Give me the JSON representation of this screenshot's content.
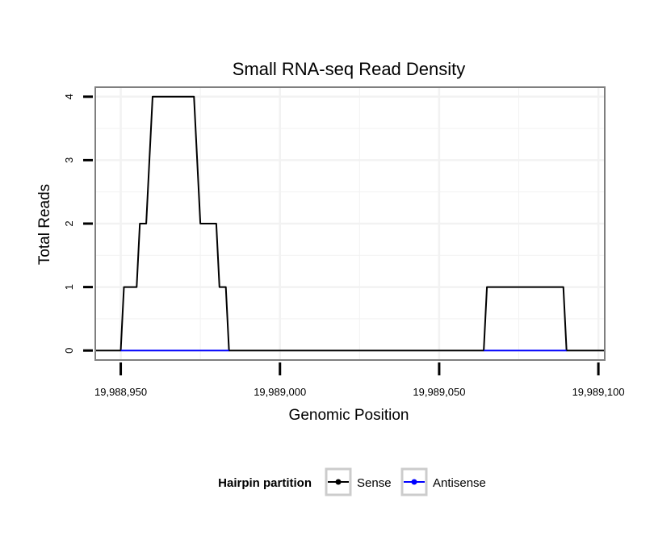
{
  "chart_data": {
    "type": "line",
    "title": "Small RNA-seq Read Density",
    "xlabel": "Genomic Position",
    "ylabel": "Total Reads",
    "xlim": [
      19988942,
      19989102
    ],
    "ylim": [
      -0.15,
      4.15
    ],
    "x_ticks": [
      19988950,
      19989000,
      19989050,
      19989100
    ],
    "x_tick_labels": [
      "19,988,950",
      "19,989,000",
      "19,989,050",
      "19,989,100"
    ],
    "y_ticks": [
      0,
      1,
      2,
      3,
      4
    ],
    "y_tick_labels": [
      "0",
      "1",
      "2",
      "3",
      "4"
    ],
    "grid": true,
    "legend": {
      "title": "Hairpin partition",
      "position": "bottom"
    },
    "series": [
      {
        "name": "Sense",
        "color": "#000000",
        "x": [
          19988942,
          19988950,
          19988951,
          19988955,
          19988956,
          19988958,
          19988960,
          19988961,
          19988973,
          19988974,
          19988975,
          19988980,
          19988981,
          19988983,
          19988984,
          19989064,
          19989065,
          19989089,
          19989090,
          19989102
        ],
        "y": [
          0,
          0,
          1,
          1,
          2,
          2,
          4,
          4,
          4,
          3,
          2,
          2,
          1,
          1,
          0,
          0,
          1,
          1,
          0,
          0
        ]
      },
      {
        "name": "Antisense",
        "color": "#0000ff",
        "x": [
          19988950,
          19988984,
          19989064,
          19989090
        ],
        "y": [
          0,
          0,
          0,
          0
        ],
        "segments": [
          [
            0,
            1
          ],
          [
            2,
            3
          ]
        ]
      }
    ]
  }
}
